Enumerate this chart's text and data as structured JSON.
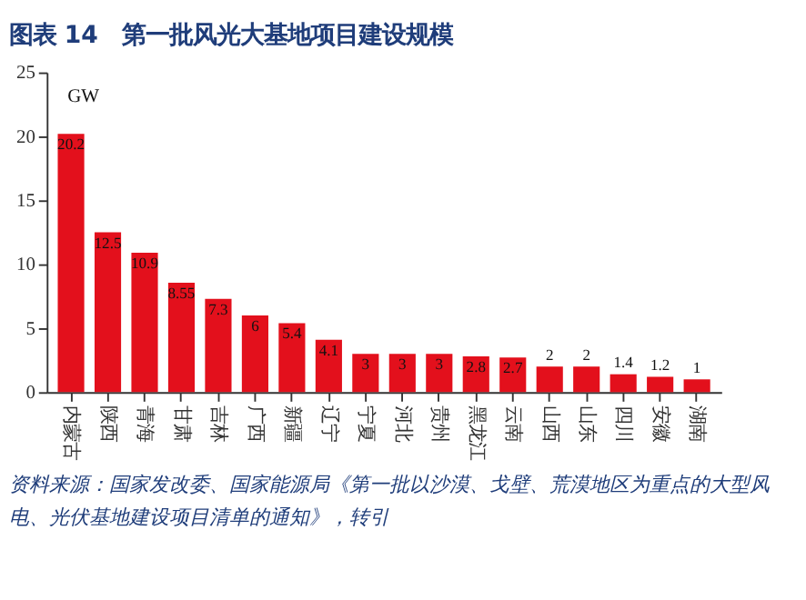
{
  "chart_data": {
    "type": "bar",
    "title": "图表 14　第一批风光大基地项目建设规模",
    "ylabel": "GW",
    "categories": [
      "内蒙古",
      "陕西",
      "青海",
      "甘肃",
      "吉林",
      "广西",
      "新疆",
      "辽宁",
      "宁夏",
      "河北",
      "贵州",
      "黑龙江",
      "云南",
      "山西",
      "山东",
      "四川",
      "安徽",
      "湖南"
    ],
    "values": [
      20.2,
      12.5,
      10.9,
      8.55,
      7.3,
      6,
      5.4,
      4.1,
      3,
      3,
      3,
      2.8,
      2.7,
      2,
      2,
      1.4,
      1.2,
      1
    ],
    "color": "#e3101c",
    "ylim": [
      0,
      25
    ],
    "yticks": [
      0,
      5,
      10,
      15,
      20,
      25
    ],
    "grid": false,
    "data_labels": true,
    "annotations": [
      "资料来源：国家发改委、国家能源局《第一批以沙漠、戈壁、荒漠地区为重点的大型风电、光伏基地建设项目清单的通知》，转引"
    ]
  }
}
